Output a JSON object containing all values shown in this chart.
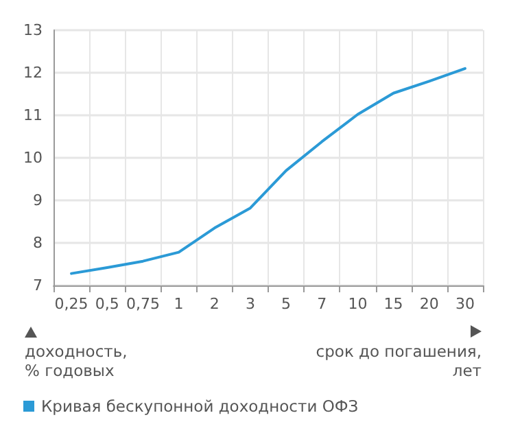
{
  "chart_data": {
    "type": "line",
    "xlabel": "срок до погашения,\nлет",
    "ylabel": "доходность,\n% годовых",
    "categories": [
      "0,25",
      "0,5",
      "0,75",
      "1",
      "2",
      "3",
      "5",
      "7",
      "10",
      "15",
      "20",
      "30"
    ],
    "series": [
      {
        "name": "Кривая бескупонной доходности ОФЗ",
        "color": "#2b9ad6",
        "values": [
          7.28,
          7.42,
          7.57,
          7.78,
          8.35,
          8.82,
          9.7,
          10.38,
          11.02,
          11.52,
          11.8,
          12.1
        ]
      }
    ],
    "ylim": [
      7,
      13
    ],
    "yticks": [
      7,
      8,
      9,
      10,
      11,
      12,
      13
    ],
    "grid": true,
    "legend": "bottom left",
    "marker": "none",
    "line_style": "solid"
  }
}
